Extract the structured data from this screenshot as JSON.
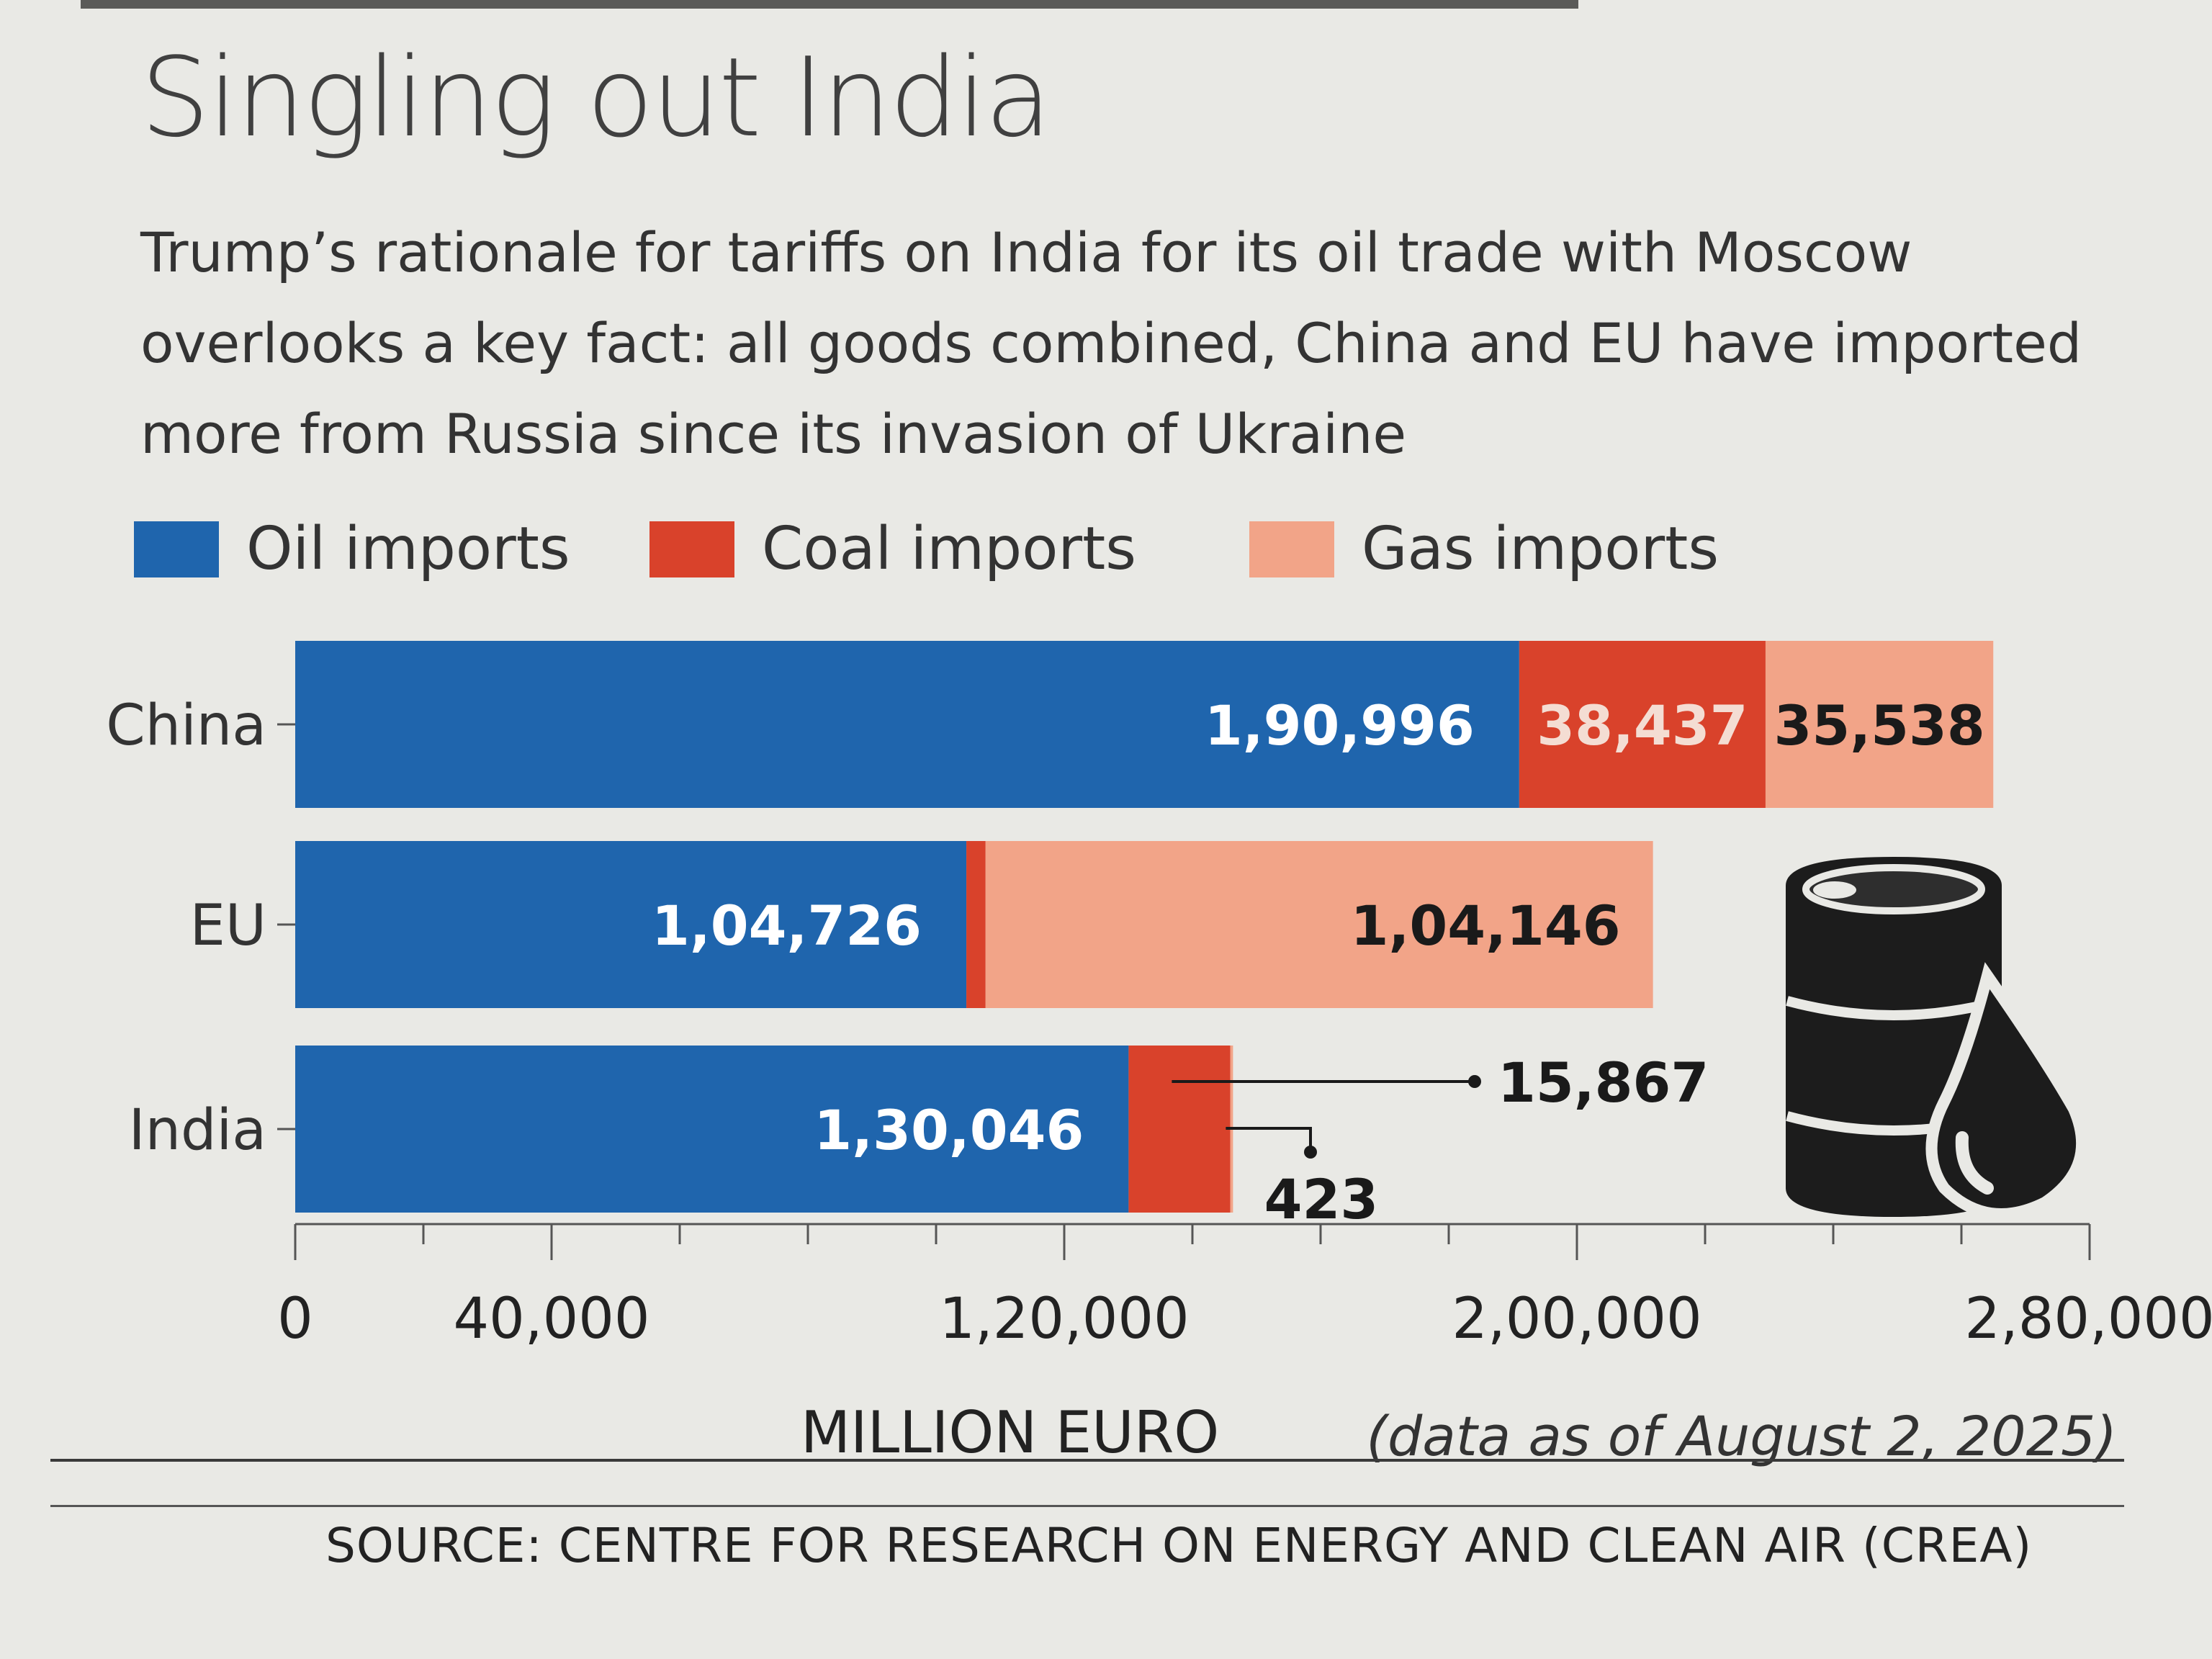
{
  "title": "Singling out India",
  "subtitle": "Trump’s rationale for tariffs on India for its oil trade with Moscow overlooks a key fact: all goods combined, China and EU have imported more from Russia since its invasion of Ukraine",
  "legend": [
    {
      "label": "Oil imports",
      "color": "#1f65ad"
    },
    {
      "label": "Coal imports",
      "color": "#d9422b"
    },
    {
      "label": "Gas imports",
      "color": "#f2a488"
    }
  ],
  "xlabel": "MILLION EURO",
  "footnote": "(data as of August 2, 2025)",
  "source": "SOURCE: CENTRE FOR RESEARCH ON ENERGY AND CLEAN AIR (CREA)",
  "icon": "oil-barrel-drop-icon",
  "chart_data": {
    "type": "bar",
    "orientation": "horizontal",
    "stacked": true,
    "categories": [
      "China",
      "EU",
      "India"
    ],
    "series": [
      {
        "name": "Oil imports",
        "color": "#1f65ad",
        "values": [
          190996,
          104726,
          130046
        ],
        "labels": [
          "1,90,996",
          "1,04,726",
          "1,30,046"
        ]
      },
      {
        "name": "Coal imports",
        "color": "#d9422b",
        "values": [
          38437,
          3000,
          15867
        ],
        "labels": [
          "38,437",
          "",
          "15,867"
        ]
      },
      {
        "name": "Gas imports",
        "color": "#f2a488",
        "values": [
          35538,
          104146,
          423
        ],
        "labels": [
          "35,538",
          "1,04,146",
          "423"
        ]
      }
    ],
    "xlim": [
      0,
      280000
    ],
    "xticks": [
      0,
      40000,
      120000,
      200000,
      280000
    ],
    "xtick_labels": [
      "0",
      "40,000",
      "1,20,000",
      "2,00,000",
      "2,80,000"
    ],
    "minor_tick_step": 20000,
    "xlabel": "MILLION EURO"
  }
}
